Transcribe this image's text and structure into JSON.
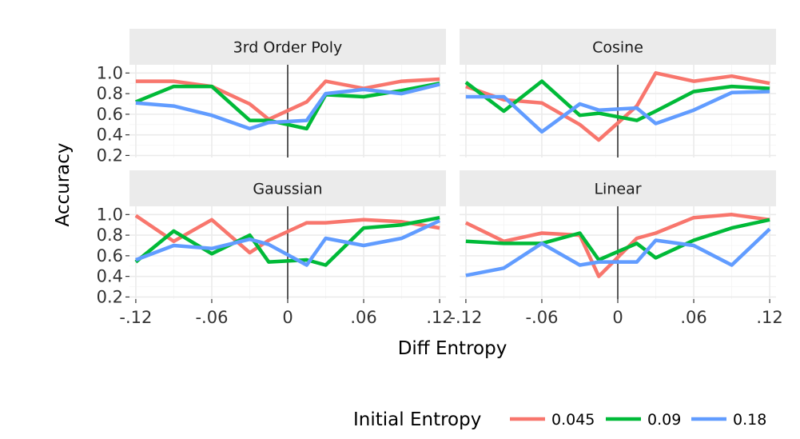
{
  "chart_data": {
    "type": "line",
    "xlabel": "Diff Entropy",
    "ylabel": "Accuracy",
    "xlim": [
      -0.125,
      0.125
    ],
    "ylim": [
      0.18,
      1.08
    ],
    "x_ticks": [
      -0.12,
      -0.06,
      0,
      0.06,
      0.12
    ],
    "x_tick_labels": [
      "-.12",
      "-.06",
      "0",
      ".06",
      ".12"
    ],
    "y_ticks": [
      0.2,
      0.4,
      0.6,
      0.8,
      1.0
    ],
    "y_tick_labels": [
      "0.2",
      "0.4",
      "0.6",
      "0.8",
      "1.0"
    ],
    "vertical_reference_line": 0,
    "grid": true,
    "legend": {
      "title": "Initial Entropy",
      "position": "bottom",
      "entries": [
        {
          "label": "0.045",
          "color": "#F8766D"
        },
        {
          "label": "0.09",
          "color": "#00BA38"
        },
        {
          "label": "0.18",
          "color": "#619CFF"
        }
      ]
    },
    "x": [
      -0.12,
      -0.09,
      -0.06,
      -0.03,
      -0.015,
      0.015,
      0.03,
      0.06,
      0.09,
      0.12
    ],
    "panels": [
      {
        "title": "3rd Order Poly",
        "series": [
          {
            "name": "0.045",
            "color": "#F8766D",
            "values": [
              0.92,
              0.92,
              0.87,
              0.7,
              0.55,
              0.72,
              0.92,
              0.85,
              0.92,
              0.94
            ]
          },
          {
            "name": "0.09",
            "color": "#00BA38",
            "values": [
              0.72,
              0.87,
              0.87,
              0.54,
              0.54,
              0.46,
              0.79,
              0.77,
              0.83,
              0.9
            ]
          },
          {
            "name": "0.18",
            "color": "#619CFF",
            "values": [
              0.71,
              0.68,
              0.59,
              0.46,
              0.52,
              0.54,
              0.8,
              0.84,
              0.8,
              0.89
            ]
          }
        ]
      },
      {
        "title": "Cosine",
        "series": [
          {
            "name": "0.045",
            "color": "#F8766D",
            "values": [
              0.87,
              0.74,
              0.71,
              0.5,
              0.35,
              0.68,
              1.0,
              0.92,
              0.97,
              0.9
            ]
          },
          {
            "name": "0.09",
            "color": "#00BA38",
            "values": [
              0.91,
              0.63,
              0.92,
              0.59,
              0.61,
              0.54,
              0.63,
              0.82,
              0.87,
              0.85
            ]
          },
          {
            "name": "0.18",
            "color": "#619CFF",
            "values": [
              0.77,
              0.77,
              0.43,
              0.7,
              0.64,
              0.66,
              0.51,
              0.64,
              0.81,
              0.82
            ]
          }
        ]
      },
      {
        "title": "Gaussian",
        "series": [
          {
            "name": "0.045",
            "color": "#F8766D",
            "values": [
              0.99,
              0.74,
              0.95,
              0.63,
              0.75,
              0.92,
              0.92,
              0.95,
              0.93,
              0.87
            ]
          },
          {
            "name": "0.09",
            "color": "#00BA38",
            "values": [
              0.54,
              0.84,
              0.62,
              0.8,
              0.54,
              0.56,
              0.51,
              0.87,
              0.9,
              0.97
            ]
          },
          {
            "name": "0.18",
            "color": "#619CFF",
            "values": [
              0.56,
              0.7,
              0.67,
              0.76,
              0.71,
              0.51,
              0.77,
              0.7,
              0.77,
              0.94
            ]
          }
        ]
      },
      {
        "title": "Linear",
        "series": [
          {
            "name": "0.045",
            "color": "#F8766D",
            "values": [
              0.92,
              0.74,
              0.82,
              0.8,
              0.4,
              0.77,
              0.82,
              0.97,
              1.0,
              0.95
            ]
          },
          {
            "name": "0.09",
            "color": "#00BA38",
            "values": [
              0.74,
              0.72,
              0.72,
              0.82,
              0.56,
              0.72,
              0.58,
              0.75,
              0.87,
              0.95
            ]
          },
          {
            "name": "0.18",
            "color": "#619CFF",
            "values": [
              0.41,
              0.48,
              0.72,
              0.51,
              0.54,
              0.54,
              0.75,
              0.7,
              0.51,
              0.86
            ]
          }
        ]
      }
    ]
  }
}
